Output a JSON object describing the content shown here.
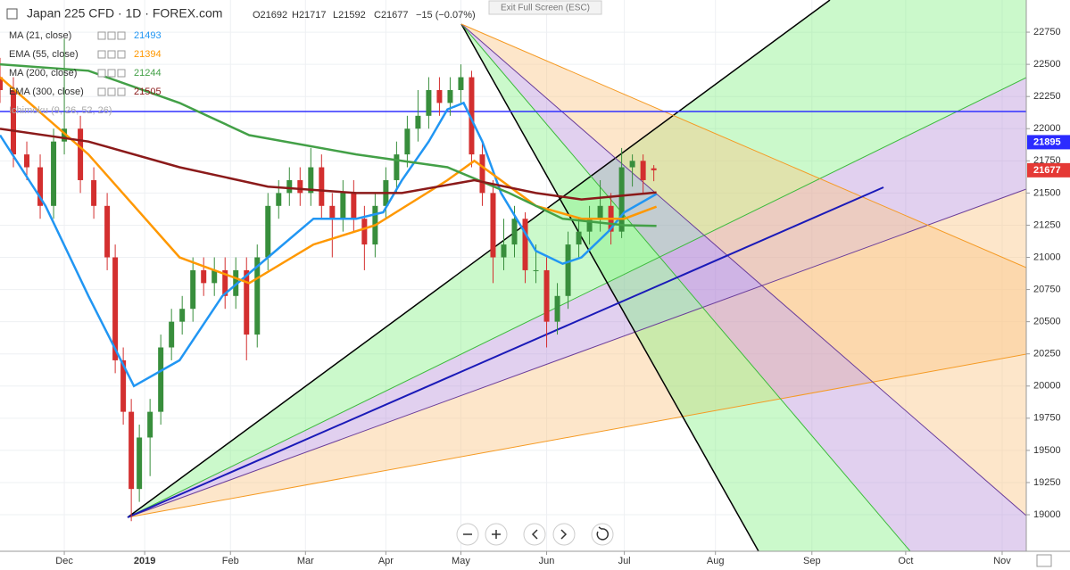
{
  "header": {
    "symbol": "Japan 225 CFD · 1D · FOREX.com",
    "open": "O21692",
    "high": "H21717",
    "low": "L21592",
    "close": "C21677",
    "change": "−15 (−0.07%)",
    "exit": "Exit Full Screen (ESC)"
  },
  "chart_data": {
    "type": "candlestick",
    "xlim": [
      0,
      383
    ],
    "ylim": [
      18716,
      23000
    ],
    "xticks": [
      {
        "value": 24,
        "label": "Dec"
      },
      {
        "value": 54,
        "label": "2019"
      },
      {
        "value": 86,
        "label": "Feb"
      },
      {
        "value": 114,
        "label": "Mar"
      },
      {
        "value": 144,
        "label": "Apr"
      },
      {
        "value": 172,
        "label": "May"
      },
      {
        "value": 204,
        "label": "Jun"
      },
      {
        "value": 233,
        "label": "Jul"
      },
      {
        "value": 267,
        "label": "Aug"
      },
      {
        "value": 303,
        "label": "Sep"
      },
      {
        "value": 338,
        "label": "Oct"
      },
      {
        "value": 374,
        "label": "Nov"
      }
    ],
    "yticks": [
      19000,
      19250,
      19500,
      19750,
      20000,
      20250,
      20500,
      20750,
      21000,
      21250,
      21500,
      21750,
      22000,
      22250,
      22500,
      22750
    ],
    "up_color": "#388e3c",
    "down_color": "#d32f2f",
    "candles": {
      "x": [
        0,
        5,
        10,
        15,
        20,
        24,
        30,
        35,
        40,
        43,
        46,
        49,
        52,
        56,
        60,
        64,
        68,
        72,
        76,
        80,
        84,
        88,
        92,
        96,
        100,
        104,
        108,
        112,
        116,
        120,
        124,
        128,
        132,
        136,
        140,
        144,
        148,
        152,
        156,
        160,
        164,
        168,
        172,
        176,
        180,
        184,
        188,
        192,
        196,
        200,
        204,
        208,
        212,
        216,
        220,
        224,
        228,
        232,
        236,
        240,
        244
      ],
      "open": [
        22400,
        22300,
        21800,
        21700,
        21400,
        21900,
        22000,
        21600,
        21400,
        21000,
        20200,
        19800,
        19200,
        19600,
        19800,
        20300,
        20500,
        20600,
        20900,
        20800,
        20900,
        20700,
        20900,
        20400,
        21000,
        21400,
        21500,
        21600,
        21500,
        21700,
        21400,
        21300,
        21500,
        21300,
        21100,
        21400,
        21600,
        21800,
        22000,
        22100,
        22300,
        22200,
        22300,
        22400,
        21800,
        21500,
        21000,
        21100,
        21300,
        20900,
        20900,
        20500,
        20700,
        21100,
        21200,
        21300,
        21400,
        21200,
        21700,
        21750,
        21692
      ],
      "high": [
        22550,
        22400,
        21900,
        21800,
        22000,
        22700,
        22100,
        21700,
        21500,
        21100,
        20300,
        19900,
        19700,
        19900,
        20400,
        20600,
        20700,
        21000,
        21000,
        21000,
        21000,
        21000,
        21000,
        21100,
        21500,
        21600,
        21700,
        21700,
        21850,
        21800,
        21500,
        21600,
        21600,
        21400,
        21500,
        21700,
        21900,
        22100,
        22300,
        22400,
        22400,
        22400,
        22500,
        22450,
        21900,
        21600,
        21300,
        21400,
        21350,
        21100,
        21000,
        20800,
        21200,
        21300,
        21400,
        21600,
        21500,
        21850,
        21800,
        21800,
        21717
      ],
      "low": [
        22200,
        21700,
        21600,
        21300,
        21300,
        21800,
        21500,
        21300,
        20900,
        20100,
        19700,
        18950,
        19100,
        19300,
        19700,
        20200,
        20400,
        20500,
        20700,
        20700,
        20600,
        20600,
        20200,
        20300,
        20900,
        21300,
        21400,
        21400,
        21400,
        21300,
        21000,
        21200,
        21200,
        20900,
        21000,
        21300,
        21500,
        21700,
        21900,
        22000,
        22100,
        22100,
        22200,
        21700,
        21400,
        20800,
        20900,
        21000,
        20800,
        20800,
        20300,
        20400,
        20600,
        21000,
        21100,
        21200,
        21100,
        21150,
        21550,
        21500,
        21592
      ],
      "close": [
        22300,
        21800,
        21700,
        21400,
        21900,
        22000,
        21600,
        21400,
        21000,
        20200,
        19800,
        19200,
        19600,
        19800,
        20300,
        20500,
        20600,
        20900,
        20800,
        20900,
        20700,
        20900,
        20400,
        21000,
        21400,
        21500,
        21600,
        21500,
        21700,
        21400,
        21300,
        21500,
        21300,
        21100,
        21400,
        21600,
        21800,
        22000,
        22100,
        22300,
        22200,
        22300,
        22400,
        21800,
        21500,
        21000,
        21100,
        21300,
        20900,
        20900,
        20500,
        20700,
        21100,
        21200,
        21300,
        21400,
        21200,
        21700,
        21750,
        21600,
        21677
      ]
    },
    "series": [
      {
        "name": "MA (21, close)",
        "color": "#2196f3",
        "x": [
          0,
          17,
          33,
          50,
          67,
          83,
          100,
          117,
          133,
          143,
          150,
          160,
          167,
          173,
          180,
          187,
          200,
          210,
          217,
          227,
          233,
          245
        ],
        "values": [
          21950,
          21400,
          20700,
          20000,
          20200,
          20700,
          21000,
          21300,
          21300,
          21350,
          21600,
          21900,
          22150,
          22200,
          21900,
          21500,
          21050,
          20950,
          21000,
          21200,
          21350,
          21493
        ]
      },
      {
        "name": "EMA (55, close)",
        "color": "#ff9800",
        "x": [
          0,
          33,
          67,
          93,
          117,
          140,
          167,
          177,
          200,
          217,
          233,
          245
        ],
        "values": [
          22400,
          21800,
          21000,
          20800,
          21100,
          21250,
          21600,
          21750,
          21400,
          21300,
          21300,
          21394
        ]
      },
      {
        "name": "MA (200, close)",
        "color": "#43a047",
        "x": [
          0,
          33,
          67,
          93,
          133,
          167,
          190,
          210,
          233,
          245
        ],
        "values": [
          22500,
          22450,
          22200,
          21950,
          21800,
          21700,
          21500,
          21300,
          21250,
          21244
        ]
      },
      {
        "name": "EMA (300, close)",
        "color": "#8b1a1a",
        "x": [
          0,
          33,
          67,
          100,
          133,
          150,
          177,
          200,
          217,
          245
        ],
        "values": [
          22000,
          21900,
          21700,
          21550,
          21500,
          21500,
          21600,
          21500,
          21450,
          21505
        ]
      }
    ],
    "indicators": [
      "Ichimoku (9, 26, 52, 26)"
    ],
    "price_labels": [
      {
        "value": 21895,
        "color": "#2b2bff"
      },
      {
        "value": 21677,
        "color": "#e53935"
      }
    ]
  }
}
